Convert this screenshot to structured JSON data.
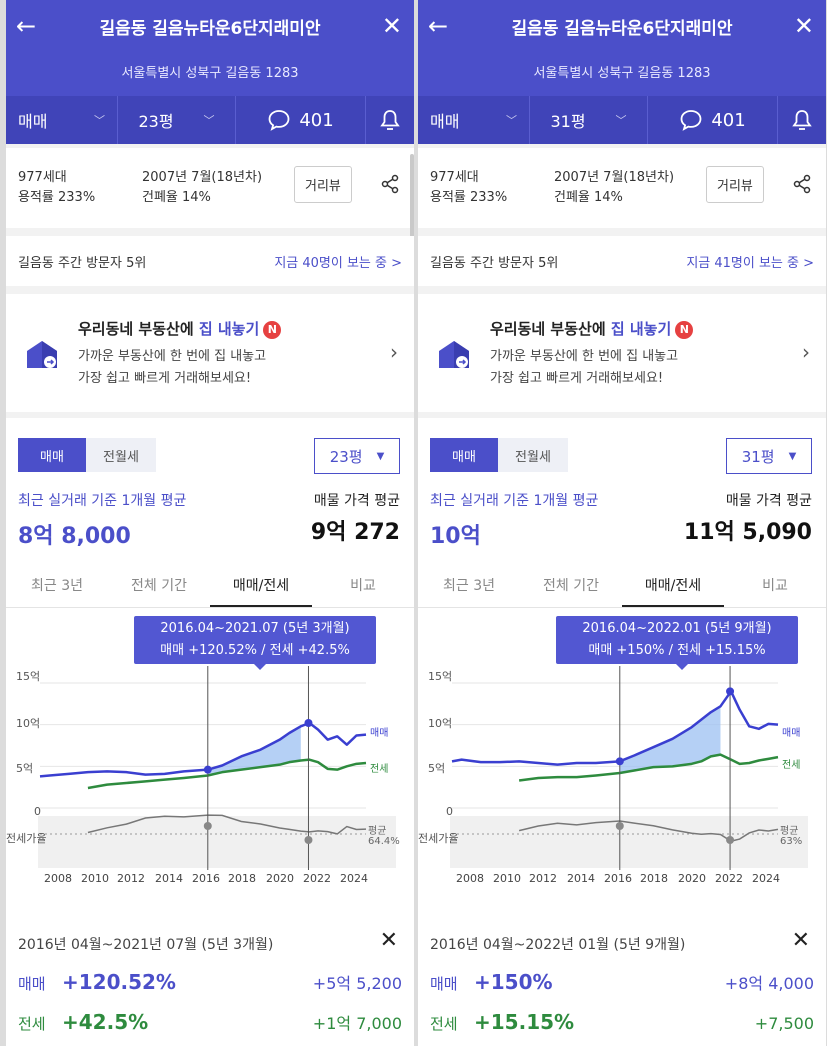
{
  "panels": [
    {
      "header": {
        "title": "길음동 길음뉴타운6단지래미안",
        "address": "서울특별시 성북구 길음동 1283"
      },
      "filterbar": {
        "trade": "매매",
        "size": "23평",
        "comments": "401"
      },
      "info": {
        "households": "977세대",
        "far": "용적률 233%",
        "built": "2007년 7월(18년차)",
        "bcr": "건폐율 14%",
        "road_view": "거리뷰"
      },
      "visitors": {
        "rank": "길음동 주간 방문자 5위",
        "watching": "지금 40명이 보는 중 >"
      },
      "promo": {
        "title_a": "우리동네 부동산에 ",
        "title_b": "집 내놓기",
        "badge": "N",
        "line1": "가까운 부동산에 한 번에 집 내놓고",
        "line2": "가장 쉽고 빠르게 거래해보세요!"
      },
      "main": {
        "toggle_on": "매매",
        "toggle_off": "전월세",
        "size_select": "23평",
        "recent_label": "최근 실거래 기준 1개월 평균",
        "recent_value": "8억 8,000",
        "listing_label": "매물 가격 평균",
        "listing_value": "9억 272",
        "tabs": [
          "최근 3년",
          "전체 기간",
          "매매/전세",
          "비교"
        ]
      },
      "tooltip": {
        "line1": "2016.04~2021.07 (5년 3개월)",
        "line2": "매매 +120.52%  /  전세 +42.5%"
      },
      "chart_labels": {
        "y": [
          "15억",
          "10억",
          "5억",
          "0"
        ],
        "sale": "매매",
        "jeonse": "전세",
        "ratio": "전세가율",
        "avg": "평균",
        "avg_pct": "64.4%",
        "x": [
          "2008",
          "2010",
          "2012",
          "2014",
          "2016",
          "2018",
          "2020",
          "2022",
          "2024"
        ]
      },
      "detail": {
        "range": "2016년 04월~2021년 07월 (5년 3개월)",
        "sale_label": "매매",
        "sale_pct": "+120.52%",
        "sale_diff": "+5억 5,200",
        "jeonse_label": "전세",
        "jeonse_pct": "+42.5%",
        "jeonse_diff": "+1억 7,000"
      }
    },
    {
      "header": {
        "title": "길음동 길음뉴타운6단지래미안",
        "address": "서울특별시 성북구 길음동 1283"
      },
      "filterbar": {
        "trade": "매매",
        "size": "31평",
        "comments": "401"
      },
      "info": {
        "households": "977세대",
        "far": "용적률 233%",
        "built": "2007년 7월(18년차)",
        "bcr": "건폐율 14%",
        "road_view": "거리뷰"
      },
      "visitors": {
        "rank": "길음동 주간 방문자 5위",
        "watching": "지금 41명이 보는 중 >"
      },
      "promo": {
        "title_a": "우리동네 부동산에 ",
        "title_b": "집 내놓기",
        "badge": "N",
        "line1": "가까운 부동산에 한 번에 집 내놓고",
        "line2": "가장 쉽고 빠르게 거래해보세요!"
      },
      "main": {
        "toggle_on": "매매",
        "toggle_off": "전월세",
        "size_select": "31평",
        "recent_label": "최근 실거래 기준 1개월 평균",
        "recent_value": "10억",
        "listing_label": "매물 가격 평균",
        "listing_value": "11억 5,090",
        "tabs": [
          "최근 3년",
          "전체 기간",
          "매매/전세",
          "비교"
        ]
      },
      "tooltip": {
        "line1": "2016.04~2022.01 (5년 9개월)",
        "line2": "매매 +150%  /  전세 +15.15%"
      },
      "chart_labels": {
        "y": [
          "15억",
          "10억",
          "5억",
          "0"
        ],
        "sale": "매매",
        "jeonse": "전세",
        "ratio": "전세가율",
        "avg": "평균",
        "avg_pct": "63%",
        "x": [
          "2008",
          "2010",
          "2012",
          "2014",
          "2016",
          "2018",
          "2020",
          "2022",
          "2024"
        ]
      },
      "detail": {
        "range": "2016년 04월~2022년 01월 (5년 9개월)",
        "sale_label": "매매",
        "sale_pct": "+150%",
        "sale_diff": "+8억 4,000",
        "jeonse_label": "전세",
        "jeonse_pct": "+15.15%",
        "jeonse_diff": "+7,500"
      }
    }
  ],
  "colors": {
    "brand": "#4b4fc9",
    "sale_line": "#3a3fd0",
    "jeonse_line": "#2e8b3e",
    "sale_fill": "#9cc0f2",
    "ratio_line": "#777777",
    "up_green": "#2e8b3e"
  },
  "chart_data": [
    {
      "type": "line",
      "x": [
        2007.5,
        2008,
        2009,
        2010,
        2011,
        2012,
        2013,
        2014,
        2015,
        2016.25,
        2017,
        2018,
        2019,
        2020,
        2020.5,
        2021.1,
        2021.55,
        2022,
        2022.5,
        2023,
        2023.5,
        2024,
        2024.5
      ],
      "series": [
        {
          "name": "매매",
          "values": [
            3.8,
            3.9,
            4.1,
            4.3,
            4.4,
            4.3,
            4.0,
            4.1,
            4.4,
            4.6,
            5.1,
            6.2,
            7.0,
            8.2,
            9.0,
            9.8,
            10.2,
            9.4,
            8.2,
            8.6,
            7.6,
            8.7,
            8.8
          ]
        },
        {
          "name": "전세",
          "values": [
            null,
            null,
            null,
            2.4,
            2.8,
            3.0,
            3.2,
            3.4,
            3.6,
            3.9,
            4.3,
            4.6,
            4.9,
            5.2,
            5.5,
            5.7,
            5.8,
            5.5,
            4.7,
            4.6,
            5.0,
            5.3,
            5.4
          ]
        }
      ],
      "selection": {
        "from": "2016.04",
        "to": "2021.07"
      },
      "ylim": [
        0,
        15
      ],
      "ratio_avg": "64.4%"
    },
    {
      "type": "line",
      "x": [
        2007.5,
        2008,
        2009,
        2010,
        2011,
        2012,
        2013,
        2014,
        2015,
        2016.25,
        2017,
        2018,
        2019,
        2020,
        2020.5,
        2021,
        2021.5,
        2022.05,
        2022.5,
        2023,
        2023.5,
        2024,
        2024.5
      ],
      "series": [
        {
          "name": "매매",
          "values": [
            5.6,
            5.8,
            5.5,
            5.5,
            5.6,
            5.4,
            5.2,
            5.4,
            5.4,
            5.6,
            6.3,
            7.3,
            8.3,
            9.7,
            10.6,
            11.5,
            12.2,
            14.0,
            11.8,
            9.8,
            9.5,
            10.1,
            10.0
          ]
        },
        {
          "name": "전세",
          "values": [
            null,
            null,
            null,
            null,
            3.3,
            3.6,
            3.7,
            3.7,
            3.9,
            4.2,
            4.5,
            4.9,
            5.0,
            5.3,
            5.6,
            6.2,
            6.4,
            5.8,
            5.3,
            5.4,
            5.7,
            5.9,
            6.1
          ]
        }
      ],
      "selection": {
        "from": "2016.04",
        "to": "2022.01"
      },
      "ylim": [
        0,
        15
      ],
      "ratio_avg": "63%"
    }
  ]
}
